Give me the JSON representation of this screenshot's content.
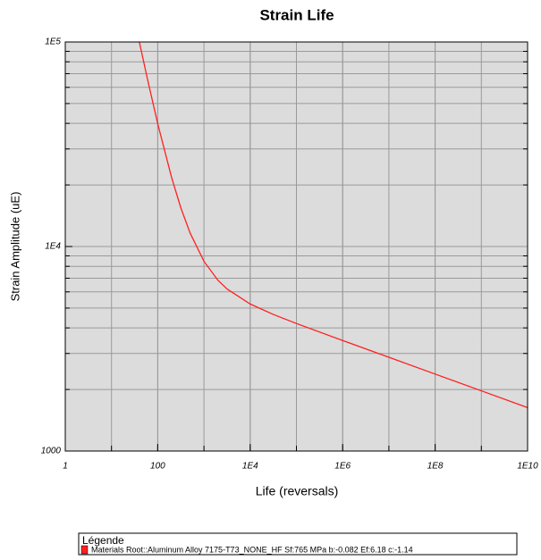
{
  "chart_data": {
    "type": "line",
    "title": "Strain Life",
    "x_label": "Life (reversals)",
    "y_label": "Strain Amplitude (uE)",
    "x_scale": "log",
    "y_scale": "log",
    "grid": true,
    "xlim": [
      1,
      10000000000
    ],
    "ylim": [
      1000,
      100000
    ],
    "xticks": [
      1,
      100,
      {
        "value": 10000,
        "label": "1E4"
      },
      {
        "value": 1000000,
        "label": "1E6"
      },
      {
        "value": 100000000,
        "label": "1E8"
      },
      {
        "value": 10000000000,
        "label": "1E10"
      }
    ],
    "yticks": [
      1000,
      {
        "value": 10000,
        "label": "1E4"
      },
      {
        "value": 100000,
        "label": "1E5"
      }
    ],
    "legend_title": "Légende",
    "legend_position": "bottom",
    "series": [
      {
        "name": "Materials Root::Aluminum Alloy 7175-T73_NONE_HF Sf:765 MPa  b:-0.082 Ef:6.18 c:-1.14",
        "color": "#ff2020",
        "x": [
          40,
          60,
          100,
          200,
          316,
          500,
          1000,
          2000,
          3162,
          10000,
          31623,
          100000,
          1000000,
          10000000,
          100000000,
          1000000000,
          10000000000
        ],
        "values": [
          100000,
          65800,
          39800,
          21700,
          15450,
          11650,
          8464,
          6844,
          6197,
          5234,
          4654,
          4204,
          3472,
          2874,
          2379,
          1970,
          1630
        ]
      }
    ]
  }
}
